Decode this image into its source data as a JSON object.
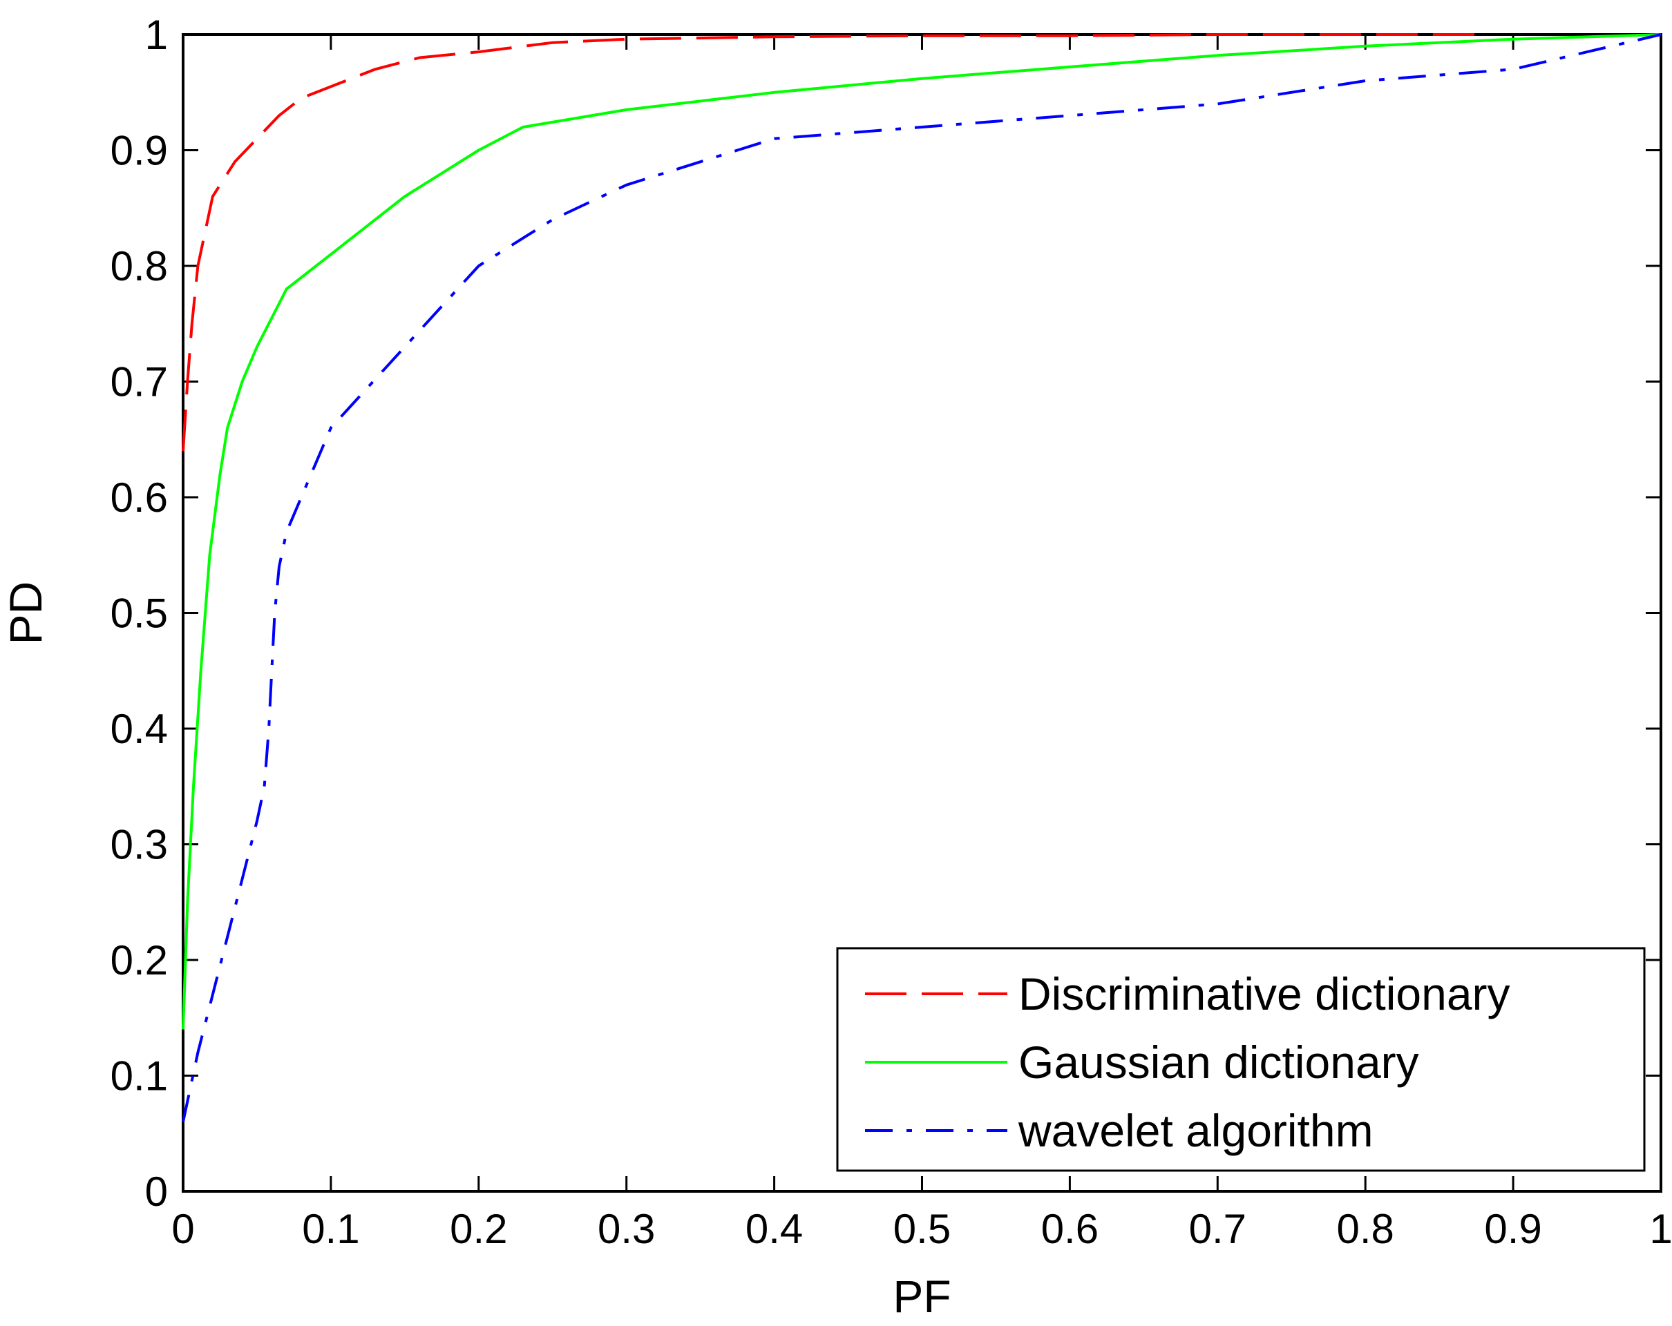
{
  "chart_data": {
    "type": "line",
    "title": "",
    "xlabel": "PF",
    "ylabel": "PD",
    "xlim": [
      0,
      1
    ],
    "ylim": [
      0,
      1
    ],
    "xticks": [
      "0",
      "0.1",
      "0.2",
      "0.3",
      "0.4",
      "0.5",
      "0.6",
      "0.7",
      "0.8",
      "0.9",
      "1"
    ],
    "yticks": [
      "0",
      "0.1",
      "0.2",
      "0.3",
      "0.4",
      "0.5",
      "0.6",
      "0.7",
      "0.8",
      "0.9",
      "1"
    ],
    "grid": false,
    "legend_position": "bottom-right",
    "series": [
      {
        "name": "Discriminative dictionary",
        "color": "#ff0000",
        "style": "dashed",
        "x": [
          0,
          0.003,
          0.006,
          0.01,
          0.015,
          0.02,
          0.025,
          0.035,
          0.05,
          0.065,
          0.08,
          0.1,
          0.13,
          0.16,
          0.2,
          0.25,
          0.3,
          0.4,
          0.5,
          0.6,
          0.7,
          0.8,
          0.88
        ],
        "y": [
          0.64,
          0.7,
          0.75,
          0.8,
          0.83,
          0.86,
          0.87,
          0.89,
          0.91,
          0.93,
          0.945,
          0.955,
          0.97,
          0.98,
          0.985,
          0.993,
          0.996,
          0.998,
          0.999,
          0.999,
          1.0,
          1.0,
          1.0
        ]
      },
      {
        "name": "Gaussian dictionary",
        "color": "#00ff00",
        "style": "solid",
        "x": [
          0,
          0.003,
          0.007,
          0.012,
          0.018,
          0.025,
          0.03,
          0.04,
          0.05,
          0.07,
          0.1,
          0.15,
          0.2,
          0.23,
          0.3,
          0.4,
          0.5,
          0.6,
          0.7,
          0.8,
          0.9,
          1.0
        ],
        "y": [
          0.14,
          0.25,
          0.35,
          0.45,
          0.55,
          0.62,
          0.66,
          0.7,
          0.73,
          0.78,
          0.81,
          0.86,
          0.9,
          0.92,
          0.935,
          0.95,
          0.962,
          0.972,
          0.982,
          0.99,
          0.996,
          1.0
        ]
      },
      {
        "name": "wavelet algorithm",
        "color": "#0000ff",
        "style": "dashdot",
        "x": [
          0,
          0.005,
          0.01,
          0.02,
          0.03,
          0.04,
          0.05,
          0.055,
          0.058,
          0.06,
          0.062,
          0.065,
          0.07,
          0.08,
          0.1,
          0.15,
          0.2,
          0.25,
          0.3,
          0.4,
          0.5,
          0.6,
          0.7,
          0.8,
          0.9,
          1.0
        ],
        "y": [
          0.06,
          0.09,
          0.12,
          0.17,
          0.22,
          0.27,
          0.32,
          0.35,
          0.4,
          0.45,
          0.5,
          0.54,
          0.57,
          0.6,
          0.66,
          0.73,
          0.8,
          0.84,
          0.87,
          0.91,
          0.92,
          0.93,
          0.94,
          0.96,
          0.97,
          1.0
        ]
      }
    ]
  }
}
